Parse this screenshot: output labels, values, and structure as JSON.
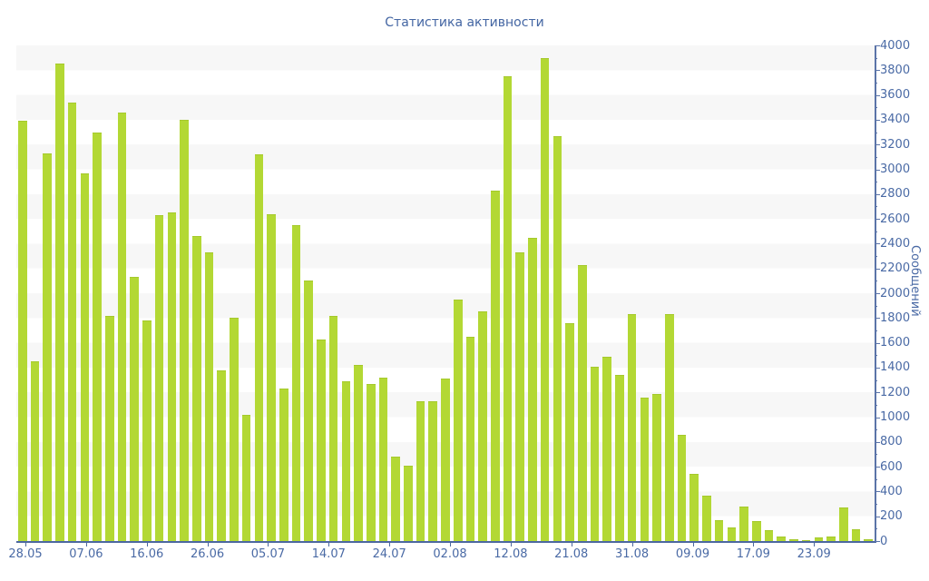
{
  "title": "Статистика активности",
  "chart_data": {
    "type": "bar",
    "title": "Статистика активности",
    "xlabel": "",
    "ylabel": "Сообщений",
    "ylim": [
      0,
      4000
    ],
    "y_major_step": 200,
    "y_minor_step": 100,
    "grid": "striped-horizontal-bands",
    "legend": "none",
    "y_tick_labels": [
      "0",
      "200",
      "400",
      "600",
      "800",
      "1000",
      "1200",
      "1400",
      "1600",
      "1800",
      "2000",
      "2200",
      "2400",
      "2600",
      "2800",
      "3000",
      "3200",
      "3400",
      "3600",
      "3800",
      "4000"
    ],
    "x_tick_labels": [
      "28.05",
      "07.06",
      "16.06",
      "26.06",
      "05.07",
      "14.07",
      "24.07",
      "02.08",
      "12.08",
      "21.08",
      "31.08",
      "09.09",
      "17.09",
      "23.09"
    ],
    "values": [
      3390,
      1450,
      3130,
      3850,
      3540,
      2970,
      3300,
      1820,
      3460,
      2130,
      1780,
      2630,
      2650,
      3400,
      2460,
      2330,
      1380,
      1800,
      1020,
      3120,
      2640,
      1230,
      2550,
      2100,
      1630,
      1820,
      1290,
      1420,
      1270,
      1320,
      680,
      610,
      1125,
      1125,
      1310,
      1950,
      1650,
      1850,
      2830,
      3750,
      2330,
      2450,
      3900,
      3270,
      1760,
      2230,
      1410,
      1490,
      1340,
      1830,
      1160,
      1190,
      1830,
      860,
      540,
      365,
      170,
      110,
      280,
      160,
      85,
      40,
      17,
      10,
      27,
      37,
      270,
      93,
      15
    ],
    "colors": {
      "bar": "#b3d834",
      "bar_edge": "#a5c92c",
      "axis_line": "#4c68a0",
      "tick_label": "#4a6aa5",
      "title_text": "#4466a3",
      "stripe": "#f7f7f7",
      "background": "#ffffff"
    }
  }
}
